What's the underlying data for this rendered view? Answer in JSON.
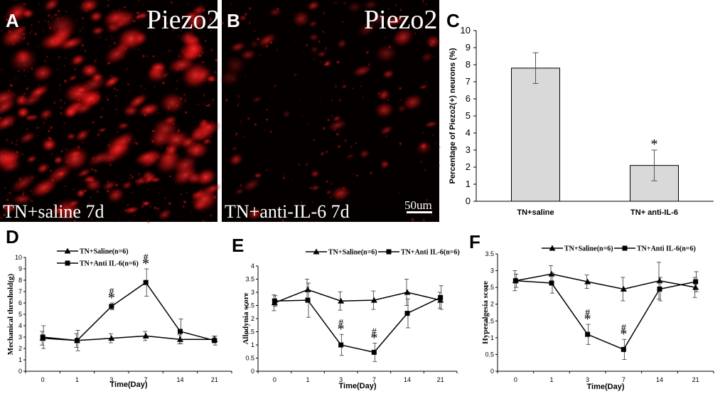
{
  "panels": {
    "A": {
      "letter": "A",
      "title": "Piezo2",
      "caption": "TN+saline 7d"
    },
    "B": {
      "letter": "B",
      "title": "Piezo2",
      "caption": "TN+anti-IL-6 7d",
      "scale_bar": "50um"
    }
  },
  "colors": {
    "micro_bg": "#050000",
    "fluor_red": "#ff1a1a",
    "bar_fill": "#d9d9d9"
  },
  "chart_data": [
    {
      "id": "C",
      "letter": "C",
      "type": "bar",
      "categories": [
        "TN+saline",
        "TN+ anti-IL-6"
      ],
      "values": [
        7.8,
        2.1
      ],
      "errors": [
        0.9,
        0.9
      ],
      "significance": [
        "",
        "*"
      ],
      "ylabel": "Percentage of Piezo2(+) neurons (%)",
      "xlabel": "",
      "ylim": [
        0,
        10
      ],
      "yticks": [
        "0",
        "1",
        "2",
        "3",
        "4",
        "5",
        "6",
        "7",
        "8",
        "9",
        "10"
      ],
      "grid": false
    },
    {
      "id": "D",
      "letter": "D",
      "type": "line",
      "x": [
        "0",
        "1",
        "3",
        "7",
        "14",
        "21"
      ],
      "xlabel": "Time(Day)",
      "ylabel": "Mechanical threshold(g)",
      "ylim": [
        0,
        10
      ],
      "yticks": [
        "0",
        "1",
        "2",
        "3",
        "4",
        "5",
        "6",
        "7",
        "8",
        "9",
        "10"
      ],
      "legend_position": "top-left",
      "series": [
        {
          "name": "TN+Saline(n=6)",
          "marker": "triangle",
          "values": [
            2.9,
            2.7,
            2.9,
            3.1,
            2.8,
            2.8
          ],
          "errors": [
            0.6,
            0.6,
            0.4,
            0.4,
            0.4,
            0.3
          ]
        },
        {
          "name": "TN+Anti IL-6(n=6)",
          "marker": "square",
          "values": [
            3.0,
            2.7,
            5.7,
            7.8,
            3.5,
            2.7
          ],
          "errors": [
            1.0,
            0.9,
            0.3,
            1.2,
            1.1,
            0.4
          ]
        }
      ],
      "annotations": [
        {
          "x_index": 2,
          "text": "#"
        },
        {
          "x_index": 2,
          "text": "*"
        },
        {
          "x_index": 3,
          "text": "#"
        },
        {
          "x_index": 3,
          "text": "*"
        }
      ]
    },
    {
      "id": "E",
      "letter": "E",
      "type": "line",
      "x": [
        "0",
        "1",
        "3",
        "7",
        "14",
        "21"
      ],
      "xlabel": "Time(Day)",
      "ylabel": "Allodynia score",
      "ylim": [
        0,
        4
      ],
      "yticks": [
        "0",
        "0.5",
        "1",
        "1.5",
        "2",
        "2.5",
        "3",
        "3.5",
        "4"
      ],
      "legend_position": "top",
      "series": [
        {
          "name": "TN+Saline(n=6)",
          "marker": "triangle",
          "values": [
            2.6,
            3.1,
            2.67,
            2.7,
            3.0,
            2.7
          ],
          "errors": [
            0.3,
            0.4,
            0.35,
            0.35,
            0.5,
            0.3
          ]
        },
        {
          "name": "TN+Anti IL-6(n=6)",
          "marker": "square",
          "values": [
            2.67,
            2.7,
            1.0,
            0.72,
            2.2,
            2.8
          ],
          "errors": [
            0.2,
            0.65,
            0.4,
            0.35,
            0.55,
            0.45
          ]
        }
      ],
      "annotations": [
        {
          "x_index": 2,
          "text": "#"
        },
        {
          "x_index": 2,
          "text": "*"
        },
        {
          "x_index": 3,
          "text": "#"
        },
        {
          "x_index": 3,
          "text": "*"
        }
      ]
    },
    {
      "id": "F",
      "letter": "F",
      "type": "line",
      "x": [
        "0",
        "1",
        "3",
        "7",
        "14",
        "21"
      ],
      "xlabel": "Time(Day)",
      "ylabel": "Hyperalgesia score",
      "ylim": [
        0,
        3.5
      ],
      "yticks": [
        "0",
        "0.5",
        "1",
        "1.5",
        "2",
        "2.5",
        "3",
        "3.5"
      ],
      "legend_position": "top",
      "series": [
        {
          "name": "TN+Saline(n=6)",
          "marker": "triangle",
          "values": [
            2.7,
            2.9,
            2.67,
            2.45,
            2.7,
            2.5
          ],
          "errors": [
            0.3,
            0.25,
            0.2,
            0.35,
            0.55,
            0.3
          ]
        },
        {
          "name": "TN+Anti IL-6(n=6)",
          "marker": "square",
          "values": [
            2.7,
            2.63,
            1.1,
            0.65,
            2.45,
            2.67
          ],
          "errors": [
            0.2,
            0.3,
            0.3,
            0.3,
            0.35,
            0.3
          ]
        }
      ],
      "annotations": [
        {
          "x_index": 2,
          "text": "#"
        },
        {
          "x_index": 2,
          "text": "*"
        },
        {
          "x_index": 3,
          "text": "#"
        },
        {
          "x_index": 3,
          "text": "*"
        }
      ]
    }
  ]
}
